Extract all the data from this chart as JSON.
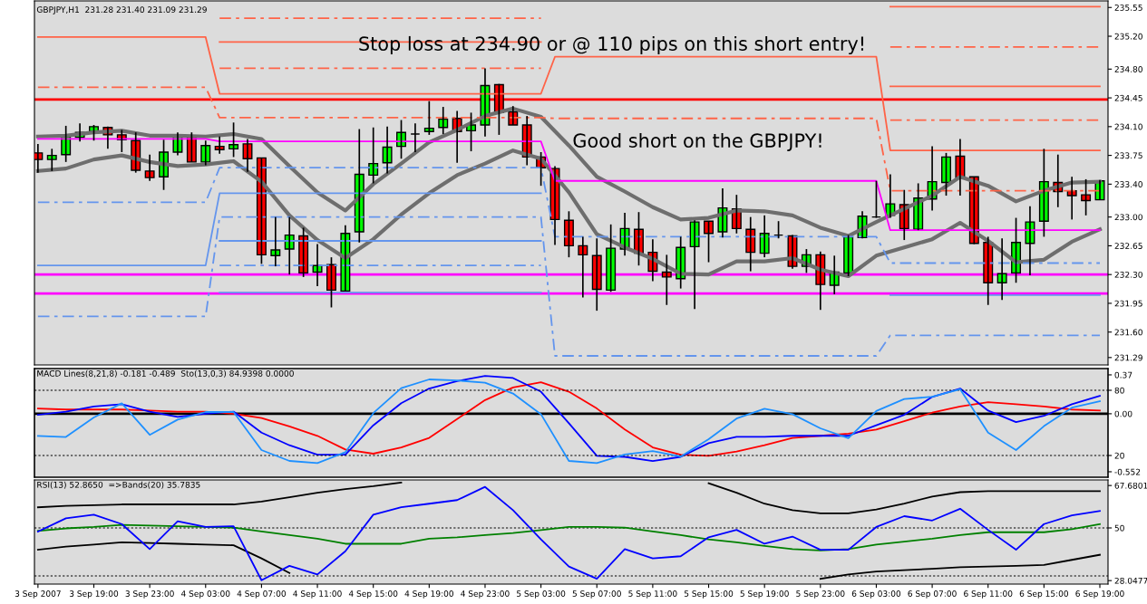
{
  "chart_data": [
    {
      "type": "candlestick",
      "title": "GBPJPY,H1  231.28 231.40 231.09 231.29",
      "annotations": [
        "Stop loss at 234.90 or @ 110 pips on this short entry!",
        "Good short on the GBPJPY!"
      ],
      "x": [
        "2007-09-03T15:00",
        "2007-09-03T16:00",
        "2007-09-03T17:00",
        "2007-09-03T18:00",
        "2007-09-03T19:00",
        "2007-09-03T20:00",
        "2007-09-03T21:00",
        "2007-09-03T22:00",
        "2007-09-03T23:00",
        "2007-09-04T00:00",
        "2007-09-04T01:00",
        "2007-09-04T02:00",
        "2007-09-04T03:00",
        "2007-09-04T04:00",
        "2007-09-04T05:00",
        "2007-09-04T06:00",
        "2007-09-04T07:00",
        "2007-09-04T08:00",
        "2007-09-04T09:00",
        "2007-09-04T10:00",
        "2007-09-04T11:00",
        "2007-09-04T12:00",
        "2007-09-04T13:00",
        "2007-09-04T14:00",
        "2007-09-04T15:00",
        "2007-09-04T16:00",
        "2007-09-04T17:00",
        "2007-09-04T18:00",
        "2007-09-04T19:00",
        "2007-09-04T20:00",
        "2007-09-04T21:00",
        "2007-09-04T22:00",
        "2007-09-04T23:00",
        "2007-09-05T00:00",
        "2007-09-05T01:00",
        "2007-09-05T02:00",
        "2007-09-05T03:00",
        "2007-09-05T04:00",
        "2007-09-05T05:00",
        "2007-09-05T06:00",
        "2007-09-05T07:00",
        "2007-09-05T08:00",
        "2007-09-05T09:00",
        "2007-09-05T10:00",
        "2007-09-05T11:00",
        "2007-09-05T12:00",
        "2007-09-05T13:00",
        "2007-09-05T14:00",
        "2007-09-05T15:00",
        "2007-09-05T16:00",
        "2007-09-05T17:00",
        "2007-09-05T18:00",
        "2007-09-05T19:00",
        "2007-09-05T20:00",
        "2007-09-05T21:00",
        "2007-09-05T22:00",
        "2007-09-05T23:00",
        "2007-09-06T00:00",
        "2007-09-06T01:00",
        "2007-09-06T02:00",
        "2007-09-06T03:00",
        "2007-09-06T04:00",
        "2007-09-06T05:00",
        "2007-09-06T06:00",
        "2007-09-06T07:00",
        "2007-09-06T08:00",
        "2007-09-06T09:00",
        "2007-09-06T10:00",
        "2007-09-06T11:00",
        "2007-09-06T12:00",
        "2007-09-06T13:00",
        "2007-09-06T14:00",
        "2007-09-06T15:00",
        "2007-09-06T16:00",
        "2007-09-06T17:00",
        "2007-09-06T18:00",
        "2007-09-06T19:00"
      ],
      "ohlc": [
        [
          233.78,
          233.89,
          233.54,
          233.7
        ],
        [
          233.7,
          233.83,
          233.56,
          233.75
        ],
        [
          233.76,
          234.11,
          233.67,
          233.98
        ],
        [
          233.97,
          234.14,
          233.92,
          234.03
        ],
        [
          234.04,
          234.12,
          233.93,
          234.1
        ],
        [
          234.09,
          234.1,
          233.83,
          234.0
        ],
        [
          234.0,
          234.06,
          233.79,
          233.94
        ],
        [
          233.93,
          234.03,
          233.54,
          233.57
        ],
        [
          233.56,
          233.76,
          233.44,
          233.48
        ],
        [
          233.49,
          233.94,
          233.33,
          233.79
        ],
        [
          233.79,
          234.03,
          233.75,
          233.99
        ],
        [
          233.98,
          234.03,
          233.67,
          233.67
        ],
        [
          233.67,
          233.93,
          233.63,
          233.87
        ],
        [
          233.86,
          233.98,
          233.77,
          233.82
        ],
        [
          233.83,
          234.15,
          233.73,
          233.88
        ],
        [
          233.89,
          233.95,
          233.55,
          233.71
        ],
        [
          233.72,
          233.72,
          232.43,
          232.54
        ],
        [
          232.53,
          233.0,
          232.4,
          232.6
        ],
        [
          232.61,
          233.0,
          232.3,
          232.78
        ],
        [
          232.77,
          232.87,
          232.27,
          232.32
        ],
        [
          232.33,
          232.67,
          232.16,
          232.41
        ],
        [
          232.42,
          232.51,
          231.9,
          232.11
        ],
        [
          232.1,
          232.9,
          232.1,
          232.8
        ],
        [
          232.82,
          234.07,
          232.69,
          233.52
        ],
        [
          233.51,
          234.09,
          233.41,
          233.65
        ],
        [
          233.66,
          234.1,
          233.53,
          233.85
        ],
        [
          233.86,
          234.18,
          233.71,
          234.03
        ],
        [
          234.01,
          234.14,
          233.79,
          234.01
        ],
        [
          234.04,
          234.41,
          234.0,
          234.08
        ],
        [
          234.09,
          234.34,
          234.01,
          234.19
        ],
        [
          234.2,
          234.29,
          233.66,
          234.04
        ],
        [
          234.05,
          234.27,
          233.8,
          234.12
        ],
        [
          234.12,
          234.81,
          233.98,
          234.6
        ],
        [
          234.61,
          234.62,
          234.0,
          234.27
        ],
        [
          234.28,
          234.35,
          234.12,
          234.12
        ],
        [
          234.12,
          234.23,
          233.63,
          233.73
        ],
        [
          233.73,
          233.79,
          233.38,
          233.6
        ],
        [
          233.59,
          233.62,
          232.66,
          232.97
        ],
        [
          232.96,
          233.07,
          232.51,
          232.65
        ],
        [
          232.65,
          232.76,
          232.02,
          232.54
        ],
        [
          232.53,
          232.74,
          231.86,
          232.12
        ],
        [
          232.11,
          232.91,
          232.09,
          232.62
        ],
        [
          232.61,
          233.05,
          232.53,
          232.86
        ],
        [
          232.85,
          233.06,
          232.41,
          232.56
        ],
        [
          232.57,
          232.73,
          232.22,
          232.34
        ],
        [
          232.33,
          232.54,
          231.93,
          232.27
        ],
        [
          232.25,
          232.76,
          232.13,
          232.63
        ],
        [
          232.64,
          232.96,
          231.88,
          232.94
        ],
        [
          232.95,
          232.95,
          232.45,
          232.8
        ],
        [
          232.82,
          233.35,
          232.75,
          233.11
        ],
        [
          233.1,
          233.27,
          232.8,
          232.86
        ],
        [
          232.85,
          233.0,
          232.34,
          232.57
        ],
        [
          232.56,
          233.02,
          232.51,
          232.8
        ],
        [
          232.78,
          232.95,
          232.74,
          232.78
        ],
        [
          232.77,
          232.78,
          232.37,
          232.4
        ],
        [
          232.4,
          232.61,
          232.32,
          232.54
        ],
        [
          232.54,
          232.58,
          231.87,
          232.18
        ],
        [
          232.17,
          232.53,
          232.06,
          232.33
        ],
        [
          232.32,
          232.78,
          232.28,
          232.76
        ],
        [
          232.75,
          233.07,
          232.74,
          233.01
        ],
        [
          233.0,
          233.44,
          232.99,
          233.0
        ],
        [
          233.02,
          233.52,
          232.99,
          233.16
        ],
        [
          233.15,
          233.33,
          232.72,
          232.86
        ],
        [
          232.85,
          233.41,
          232.84,
          233.23
        ],
        [
          233.22,
          233.86,
          233.08,
          233.43
        ],
        [
          233.42,
          233.78,
          233.26,
          233.73
        ],
        [
          233.74,
          233.95,
          233.26,
          233.48
        ],
        [
          233.49,
          233.49,
          232.67,
          232.68
        ],
        [
          232.69,
          232.76,
          231.93,
          232.2
        ],
        [
          232.2,
          232.74,
          231.99,
          232.31
        ],
        [
          232.32,
          232.99,
          232.2,
          232.69
        ],
        [
          232.68,
          233.13,
          232.29,
          232.94
        ],
        [
          232.95,
          233.83,
          232.76,
          233.43
        ],
        [
          233.42,
          233.76,
          233.12,
          233.31
        ],
        [
          233.32,
          233.49,
          232.97,
          233.26
        ],
        [
          233.27,
          233.46,
          233.02,
          233.2
        ],
        [
          233.21,
          233.45,
          233.21,
          233.44
        ]
      ],
      "colors": [
        "#ff0000",
        "#00ff00",
        "#00ff00",
        "#00ff00",
        "#00ff00",
        "#ff0000",
        "#ff0000",
        "#ff0000",
        "#ff0000",
        "#00ff00",
        "#00ff00",
        "#ff0000",
        "#00ff00",
        "#ff0000",
        "#00ff00",
        "#ff0000",
        "#ff0000",
        "#00ff00",
        "#00ff00",
        "#ff0000",
        "#00ff00",
        "#ff0000",
        "#00ff00",
        "#00ff00",
        "#00ff00",
        "#00ff00",
        "#00ff00",
        "#000000",
        "#00ff00",
        "#00ff00",
        "#ff0000",
        "#00ff00",
        "#00ff00",
        "#ff0000",
        "#ff0000",
        "#ff0000",
        "#ff0000",
        "#ff0000",
        "#ff0000",
        "#ff0000",
        "#ff0000",
        "#00ff00",
        "#00ff00",
        "#ff0000",
        "#ff0000",
        "#ff0000",
        "#00ff00",
        "#00ff00",
        "#ff0000",
        "#00ff00",
        "#ff0000",
        "#ff0000",
        "#00ff00",
        "#000000",
        "#ff0000",
        "#00ff00",
        "#ff0000",
        "#00ff00",
        "#00ff00",
        "#00ff00",
        "#000000",
        "#00ff00",
        "#ff0000",
        "#00ff00",
        "#00ff00",
        "#00ff00",
        "#ff0000",
        "#ff0000",
        "#ff0000",
        "#00ff00",
        "#00ff00",
        "#00ff00",
        "#00ff00",
        "#ff0000",
        "#ff0000",
        "#ff0000",
        "#00ff00"
      ],
      "series": [
        {
          "type": "line",
          "color": "#6e6e6e",
          "x": [
            "2007-09-03T15:00",
            "2007-09-03T17:00",
            "2007-09-03T19:00",
            "2007-09-03T21:00",
            "2007-09-03T23:00",
            "2007-09-04T01:00",
            "2007-09-04T03:00",
            "2007-09-04T05:00",
            "2007-09-04T07:00",
            "2007-09-04T09:00",
            "2007-09-04T11:00",
            "2007-09-04T13:00",
            "2007-09-04T15:00",
            "2007-09-04T17:00",
            "2007-09-04T19:00",
            "2007-09-04T21:00",
            "2007-09-04T23:00",
            "2007-09-05T01:00",
            "2007-09-05T03:00",
            "2007-09-05T05:00",
            "2007-09-05T07:00",
            "2007-09-05T09:00",
            "2007-09-05T11:00",
            "2007-09-05T13:00",
            "2007-09-05T15:00",
            "2007-09-05T17:00",
            "2007-09-05T19:00",
            "2007-09-05T21:00",
            "2007-09-05T23:00",
            "2007-09-06T01:00",
            "2007-09-06T03:00",
            "2007-09-06T05:00",
            "2007-09-06T07:00",
            "2007-09-06T09:00",
            "2007-09-06T11:00",
            "2007-09-06T13:00",
            "2007-09-06T15:00",
            "2007-09-06T17:00",
            "2007-09-06T19:00"
          ],
          "values": [
            233.98,
            233.99,
            234.03,
            234.05,
            233.99,
            233.99,
            233.98,
            234.01,
            233.95,
            233.62,
            233.3,
            233.08,
            233.4,
            233.65,
            233.91,
            234.06,
            234.23,
            234.32,
            234.22,
            233.87,
            233.49,
            233.31,
            233.12,
            232.97,
            232.99,
            233.08,
            233.07,
            233.02,
            232.87,
            232.77,
            232.94,
            233.1,
            233.26,
            233.49,
            233.38,
            233.19,
            233.32,
            233.42,
            233.43
          ]
        },
        {
          "type": "line",
          "color": "#6e6e6e",
          "x": [
            "2007-09-03T15:00",
            "2007-09-03T17:00",
            "2007-09-03T19:00",
            "2007-09-03T21:00",
            "2007-09-03T23:00",
            "2007-09-04T01:00",
            "2007-09-04T03:00",
            "2007-09-04T05:00",
            "2007-09-04T07:00",
            "2007-09-04T09:00",
            "2007-09-04T11:00",
            "2007-09-04T13:00",
            "2007-09-04T15:00",
            "2007-09-04T17:00",
            "2007-09-04T19:00",
            "2007-09-04T21:00",
            "2007-09-04T23:00",
            "2007-09-05T01:00",
            "2007-09-05T03:00",
            "2007-09-05T05:00",
            "2007-09-05T07:00",
            "2007-09-05T09:00",
            "2007-09-05T11:00",
            "2007-09-05T13:00",
            "2007-09-05T15:00",
            "2007-09-05T17:00",
            "2007-09-05T19:00",
            "2007-09-05T21:00",
            "2007-09-05T23:00",
            "2007-09-06T01:00",
            "2007-09-06T03:00",
            "2007-09-06T05:00",
            "2007-09-06T07:00",
            "2007-09-06T09:00",
            "2007-09-06T11:00",
            "2007-09-06T13:00",
            "2007-09-06T15:00",
            "2007-09-06T17:00",
            "2007-09-06T19:00"
          ],
          "values": [
            233.56,
            233.59,
            233.7,
            233.75,
            233.67,
            233.62,
            233.64,
            233.68,
            233.43,
            233.02,
            232.72,
            232.5,
            232.73,
            233.03,
            233.29,
            233.51,
            233.65,
            233.81,
            233.71,
            233.3,
            232.79,
            232.63,
            232.49,
            232.31,
            232.3,
            232.46,
            232.46,
            232.5,
            232.36,
            232.28,
            232.53,
            232.63,
            232.73,
            232.93,
            232.71,
            232.45,
            232.48,
            232.7,
            232.85
          ]
        },
        {
          "type": "line",
          "color": "#ff00ff",
          "line_style": "solid",
          "x": [
            "2007-09-03T15:00",
            "2007-09-04T03:00",
            "2007-09-04T04:00",
            "2007-09-05T03:00",
            "2007-09-05T04:00",
            "2007-09-06T03:00",
            "2007-09-06T04:00",
            "2007-09-06T19:00"
          ],
          "values": [
            233.95,
            233.95,
            233.92,
            233.92,
            233.44,
            233.44,
            232.84,
            232.84
          ]
        },
        {
          "type": "line",
          "color": "#6495ed",
          "line_style": "dashed",
          "x": [
            "2007-09-03T15:00",
            "2007-09-04T03:00",
            "2007-09-04T04:00",
            "2007-09-05T03:00",
            "2007-09-05T04:00",
            "2007-09-06T03:00",
            "2007-09-06T04:00",
            "2007-09-06T19:00"
          ],
          "values": [
            233.18,
            233.18,
            233.6,
            233.6,
            232.76,
            232.76,
            232.44,
            232.44
          ]
        },
        {
          "type": "line",
          "color": "#6495ed",
          "line_style": "solid",
          "x": [
            "2007-09-03T15:00",
            "2007-09-04T03:00",
            "2007-09-04T04:00",
            "2007-09-05T03:00",
            "2007-09-05T04:00",
            "2007-09-06T03:00",
            "2007-09-06T04:00",
            "2007-09-06T19:00"
          ],
          "values": [
            232.41,
            232.41,
            233.29,
            233.29,
            null,
            null,
            232.05,
            232.05
          ]
        },
        {
          "type": "line",
          "color": "#6495ed",
          "line_style": "dashed",
          "x": [
            "2007-09-03T15:00",
            "2007-09-04T03:00",
            "2007-09-04T04:00",
            "2007-09-05T03:00",
            "2007-09-05T04:00",
            "2007-09-06T03:00",
            "2007-09-06T04:00",
            "2007-09-06T19:00"
          ],
          "values": [
            231.79,
            231.79,
            233.0,
            233.0,
            231.31,
            231.31,
            231.56,
            231.56
          ]
        },
        {
          "type": "line",
          "color": "#6495ed",
          "line_style": "solid",
          "x": [
            "2007-09-04T04:00",
            "2007-09-05T03:00"
          ],
          "values": [
            232.71,
            232.71
          ]
        },
        {
          "type": "line",
          "color": "#6495ed",
          "line_style": "dashed",
          "x": [
            "2007-09-04T04:00",
            "2007-09-05T03:00"
          ],
          "values": [
            232.41,
            232.41
          ]
        },
        {
          "type": "line",
          "color": "#6495ed",
          "line_style": "solid",
          "x": [
            "2007-09-04T04:00",
            "2007-09-05T03:00"
          ],
          "values": [
            232.08,
            232.08
          ]
        },
        {
          "type": "line",
          "color": "#ff6347",
          "line_style": "dashed",
          "x": [
            "2007-09-03T15:00",
            "2007-09-04T03:00",
            "2007-09-04T04:00",
            "2007-09-05T03:00",
            "2007-09-05T04:00",
            "2007-09-06T03:00",
            "2007-09-06T04:00",
            "2007-09-06T19:00"
          ],
          "values": [
            234.58,
            234.58,
            234.21,
            234.21,
            234.2,
            234.2,
            233.32,
            233.32
          ]
        },
        {
          "type": "line",
          "color": "#ff6347",
          "line_style": "solid",
          "x": [
            "2007-09-03T15:00",
            "2007-09-04T03:00",
            "2007-09-04T04:00",
            "2007-09-05T03:00",
            "2007-09-05T04:00",
            "2007-09-06T03:00",
            "2007-09-06T04:00",
            "2007-09-06T19:00"
          ],
          "values": [
            235.19,
            235.19,
            234.5,
            234.5,
            234.95,
            234.95,
            233.81,
            233.81
          ]
        },
        {
          "type": "line",
          "color": "#ff6347",
          "line_style": "dashed",
          "x": [
            "2007-09-04T04:00",
            "2007-09-05T03:00",
            "2007-09-05T04:00",
            "2007-09-06T03:00",
            "2007-09-06T04:00",
            "2007-09-06T19:00"
          ],
          "values": [
            234.81,
            234.81,
            null,
            null,
            234.18,
            234.18
          ]
        },
        {
          "type": "line",
          "color": "#ff6347",
          "line_style": "solid",
          "x": [
            "2007-09-04T04:00",
            "2007-09-05T03:00",
            "2007-09-05T04:00",
            "2007-09-06T03:00",
            "2007-09-06T04:00",
            "2007-09-06T19:00"
          ],
          "values": [
            235.13,
            235.13,
            null,
            null,
            234.59,
            234.59
          ]
        },
        {
          "type": "line",
          "color": "#ff6347",
          "line_style": "dashed",
          "x": [
            "2007-09-04T04:00",
            "2007-09-05T03:00",
            "2007-09-05T04:00",
            "2007-09-06T03:00",
            "2007-09-06T04:00",
            "2007-09-06T19:00"
          ],
          "values": [
            235.42,
            235.42,
            null,
            null,
            235.07,
            235.07
          ]
        },
        {
          "type": "line",
          "color": "#ff6347",
          "line_style": "solid",
          "x": [
            "2007-09-06T04:00",
            "2007-09-06T19:00"
          ],
          "values": [
            235.56,
            235.56
          ]
        }
      ],
      "ref_lines": [
        {
          "axis": "y",
          "value": 234.43,
          "color": "#ff0000"
        },
        {
          "axis": "y",
          "value": 232.3,
          "color": "#ff00ff"
        },
        {
          "axis": "y",
          "value": 232.07,
          "color": "#ff00ff"
        }
      ],
      "xlim": [
        "2007-09-03T14:45",
        "2007-09-06T19:35"
      ],
      "ylim": [
        231.2,
        235.63
      ],
      "yticks": [
        235.55,
        {
          "value": 235.2,
          "label": "235.20"
        },
        {
          "value": 234.8,
          "label": "234.80"
        },
        234.45,
        {
          "value": 234.1,
          "label": "234.10"
        },
        233.75,
        {
          "value": 233.4,
          "label": "233.40"
        },
        {
          "value": 233.0,
          "label": "233.00"
        },
        232.65,
        {
          "value": 232.3,
          "label": "232.30"
        },
        231.95,
        {
          "value": 231.6,
          "label": "231.60"
        },
        231.29
      ],
      "tick_labels": "y"
    },
    {
      "type": "line",
      "title": "MACD Lines(8,21,8) -0.181 -0.489  Sto(13,0,3) 84.9398 0.0000",
      "x": [
        "2007-09-03T15:00",
        "2007-09-03T17:00",
        "2007-09-03T19:00",
        "2007-09-03T21:00",
        "2007-09-03T23:00",
        "2007-09-04T01:00",
        "2007-09-04T03:00",
        "2007-09-04T05:00",
        "2007-09-04T07:00",
        "2007-09-04T09:00",
        "2007-09-04T11:00",
        "2007-09-04T13:00",
        "2007-09-04T15:00",
        "2007-09-04T17:00",
        "2007-09-04T19:00",
        "2007-09-04T21:00",
        "2007-09-04T23:00",
        "2007-09-05T01:00",
        "2007-09-05T03:00",
        "2007-09-05T05:00",
        "2007-09-05T07:00",
        "2007-09-05T09:00",
        "2007-09-05T11:00",
        "2007-09-05T13:00",
        "2007-09-05T15:00",
        "2007-09-05T17:00",
        "2007-09-05T19:00",
        "2007-09-05T21:00",
        "2007-09-05T23:00",
        "2007-09-06T01:00",
        "2007-09-06T03:00",
        "2007-09-06T05:00",
        "2007-09-06T07:00",
        "2007-09-06T09:00",
        "2007-09-06T11:00",
        "2007-09-06T13:00",
        "2007-09-06T15:00",
        "2007-09-06T17:00",
        "2007-09-06T19:00"
      ],
      "series": [
        {
          "color": "#1e90ff",
          "axis": "y2",
          "values": [
            38,
            37,
            55,
            68,
            39,
            53,
            60,
            60,
            25,
            15,
            13,
            23,
            59,
            82,
            90,
            89,
            87,
            77,
            58,
            15,
            13,
            21,
            24,
            19,
            35,
            54,
            63,
            58,
            45,
            36,
            61,
            72,
            74,
            81,
            41,
            25,
            47,
            64,
            70
          ]
        },
        {
          "color": "#ff0000",
          "values": [
            0.05,
            0.04,
            0.04,
            0.04,
            0.03,
            0.02,
            0.02,
            0.0,
            -0.04,
            -0.12,
            -0.21,
            -0.34,
            -0.38,
            -0.32,
            -0.23,
            -0.05,
            0.13,
            0.25,
            0.3,
            0.21,
            0.05,
            -0.15,
            -0.32,
            -0.39,
            -0.4,
            -0.36,
            -0.3,
            -0.23,
            -0.21,
            -0.19,
            -0.15,
            -0.07,
            0.01,
            0.07,
            0.11,
            0.09,
            0.07,
            0.04,
            0.03
          ]
        },
        {
          "color": "#0000ff",
          "values": [
            -0.01,
            0.02,
            0.07,
            0.09,
            0.02,
            -0.03,
            0.0,
            0.02,
            -0.18,
            -0.3,
            -0.39,
            -0.39,
            -0.11,
            0.1,
            0.24,
            0.31,
            0.36,
            0.34,
            0.21,
            -0.09,
            -0.4,
            -0.41,
            -0.45,
            -0.41,
            -0.28,
            -0.22,
            -0.22,
            -0.21,
            -0.21,
            -0.21,
            -0.11,
            -0.01,
            0.16,
            0.24,
            0.03,
            -0.08,
            -0.02,
            0.09,
            0.17
          ]
        }
      ],
      "ref_lines": [
        {
          "axis": "y",
          "value": 0,
          "color": "#000000",
          "line_style": "solid"
        },
        {
          "axis": "y2",
          "value": 80,
          "color": "#000000",
          "line_style": "dotted"
        },
        {
          "axis": "y2",
          "value": 20,
          "color": "#000000",
          "line_style": "dotted"
        }
      ],
      "xlim": [
        "2007-09-03T14:45",
        "2007-09-06T19:35"
      ],
      "ylim": [
        -0.604,
        0.43
      ],
      "yticks": [
        0.37,
        {
          "value": 0,
          "label": "0.00"
        },
        -0.552
      ],
      "y2lim": [
        0,
        100
      ],
      "y2ticks": [
        80,
        20
      ],
      "tick_labels": "y"
    },
    {
      "type": "line",
      "title": "RSI(13) 52.8650  =>Bands(20) 35.7835",
      "x": [
        "2007-09-03T15:00",
        "2007-09-03T17:00",
        "2007-09-03T19:00",
        "2007-09-03T21:00",
        "2007-09-03T23:00",
        "2007-09-04T01:00",
        "2007-09-04T03:00",
        "2007-09-04T05:00",
        "2007-09-04T07:00",
        "2007-09-04T09:00",
        "2007-09-04T11:00",
        "2007-09-04T13:00",
        "2007-09-04T15:00",
        "2007-09-04T17:00",
        "2007-09-04T19:00",
        "2007-09-04T21:00",
        "2007-09-04T23:00",
        "2007-09-05T01:00",
        "2007-09-05T03:00",
        "2007-09-05T05:00",
        "2007-09-05T07:00",
        "2007-09-05T09:00",
        "2007-09-05T11:00",
        "2007-09-05T13:00",
        "2007-09-05T15:00",
        "2007-09-05T17:00",
        "2007-09-05T19:00",
        "2007-09-05T21:00",
        "2007-09-05T23:00",
        "2007-09-06T01:00",
        "2007-09-06T03:00",
        "2007-09-06T05:00",
        "2007-09-06T07:00",
        "2007-09-06T09:00",
        "2007-09-06T11:00",
        "2007-09-06T13:00",
        "2007-09-06T15:00",
        "2007-09-06T17:00",
        "2007-09-06T19:00"
      ],
      "series": [
        {
          "color": "#000000",
          "values": [
            58.6,
            59.2,
            59.5,
            59.8,
            59.8,
            59.8,
            59.8,
            59.8,
            61.0,
            62.8,
            64.7,
            66.2,
            67.4,
            68.9,
            null,
            null,
            null,
            null,
            null,
            null,
            null,
            null,
            null,
            null,
            68.6,
            64.7,
            60.1,
            57.4,
            56.1,
            56.1,
            57.7,
            60.1,
            63.1,
            64.9,
            65.3,
            65.3,
            65.3,
            65.3,
            65.3
          ]
        },
        {
          "color": "#000000",
          "values": [
            40.9,
            42.2,
            43.1,
            44.0,
            43.7,
            43.4,
            43.1,
            42.8,
            37.3,
            31.2,
            null,
            null,
            null,
            null,
            null,
            null,
            null,
            null,
            null,
            null,
            null,
            null,
            null,
            null,
            null,
            null,
            null,
            null,
            28.8,
            30.6,
            31.8,
            32.4,
            33.0,
            33.6,
            33.9,
            34.2,
            34.6,
            36.7,
            38.8
          ]
        },
        {
          "color": "#008000",
          "values": [
            48.8,
            49.8,
            50.4,
            51.3,
            51.0,
            50.7,
            50.4,
            50.1,
            48.5,
            47.0,
            45.5,
            43.4,
            43.4,
            43.4,
            45.5,
            46.1,
            47.0,
            47.9,
            49.1,
            50.4,
            50.4,
            50.1,
            48.5,
            47.0,
            45.2,
            44.0,
            42.5,
            41.2,
            40.6,
            41.2,
            43.1,
            44.3,
            45.5,
            47.0,
            48.2,
            48.2,
            48.2,
            49.5,
            51.6
          ]
        },
        {
          "color": "#0000ff",
          "values": [
            48.5,
            54.0,
            55.5,
            51.6,
            41.2,
            52.8,
            50.4,
            50.7,
            28.2,
            34.2,
            30.6,
            40.3,
            55.5,
            58.6,
            60.1,
            61.6,
            67.1,
            57.4,
            45.2,
            33.9,
            28.8,
            41.2,
            37.3,
            38.2,
            46.1,
            49.2,
            43.4,
            46.4,
            40.9,
            40.9,
            50.4,
            54.9,
            53.1,
            58.0,
            49.2,
            40.9,
            51.6,
            55.2,
            57.1
          ]
        }
      ],
      "ref_lines": [
        {
          "axis": "y",
          "value": 50,
          "color": "#000000",
          "line_style": "dotted"
        },
        {
          "axis": "y",
          "value": 30,
          "color": "#000000",
          "line_style": "dotted"
        }
      ],
      "xlim": [
        "2007-09-03T14:45",
        "2007-09-06T19:35"
      ],
      "xticks": [
        {
          "value": "2007-09-03T15:00",
          "label": "3 Sep 2007"
        },
        {
          "value": "2007-09-03T19:00",
          "label": "3 Sep 19:00"
        },
        {
          "value": "2007-09-03T23:00",
          "label": "3 Sep 23:00"
        },
        {
          "value": "2007-09-04T03:00",
          "label": "4 Sep 03:00"
        },
        {
          "value": "2007-09-04T07:00",
          "label": "4 Sep 07:00"
        },
        {
          "value": "2007-09-04T11:00",
          "label": "4 Sep 11:00"
        },
        {
          "value": "2007-09-04T15:00",
          "label": "4 Sep 15:00"
        },
        {
          "value": "2007-09-04T19:00",
          "label": "4 Sep 19:00"
        },
        {
          "value": "2007-09-04T23:00",
          "label": "4 Sep 23:00"
        },
        {
          "value": "2007-09-05T03:00",
          "label": "5 Sep 03:00"
        },
        {
          "value": "2007-09-05T07:00",
          "label": "5 Sep 07:00"
        },
        {
          "value": "2007-09-05T11:00",
          "label": "5 Sep 11:00"
        },
        {
          "value": "2007-09-05T15:00",
          "label": "5 Sep 15:00"
        },
        {
          "value": "2007-09-05T19:00",
          "label": "5 Sep 19:00"
        },
        {
          "value": "2007-09-05T23:00",
          "label": "5 Sep 23:00"
        },
        {
          "value": "2007-09-06T03:00",
          "label": "6 Sep 03:00"
        },
        {
          "value": "2007-09-06T07:00",
          "label": "6 Sep 07:00"
        },
        {
          "value": "2007-09-06T11:00",
          "label": "6 Sep 11:00"
        },
        {
          "value": "2007-09-06T15:00",
          "label": "6 Sep 15:00"
        },
        {
          "value": "2007-09-06T19:00",
          "label": "6 Sep 19:00"
        }
      ],
      "ylim": [
        26.6,
        70.0
      ],
      "yticks": [
        67.6801,
        50,
        28.0477
      ]
    }
  ]
}
